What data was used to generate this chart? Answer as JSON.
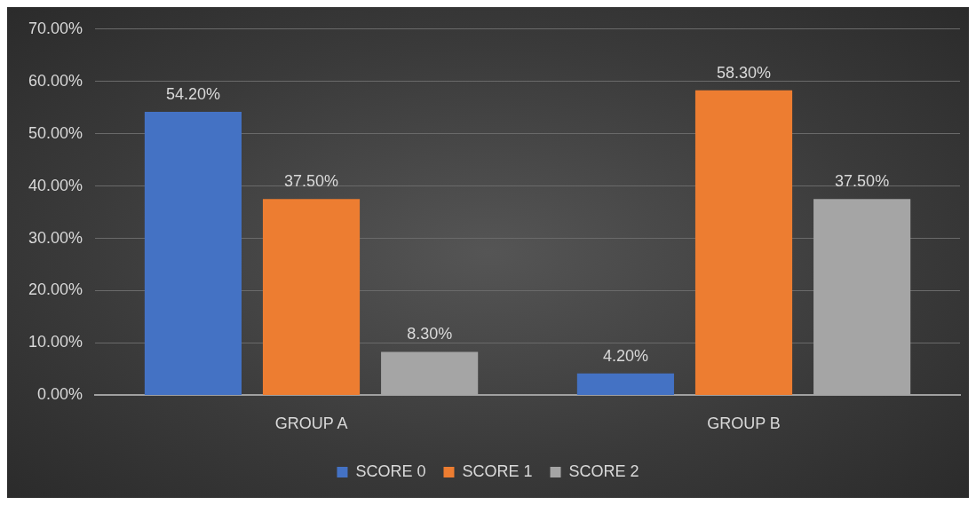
{
  "chart_data": {
    "type": "bar",
    "categories": [
      "GROUP A",
      "GROUP B"
    ],
    "series": [
      {
        "name": "SCORE 0",
        "color": "#4472c4",
        "values": [
          54.2,
          4.2
        ],
        "value_labels": [
          "54.20%",
          "4.20%"
        ]
      },
      {
        "name": "SCORE 1",
        "color": "#ed7d31",
        "values": [
          37.5,
          58.3
        ],
        "value_labels": [
          "37.50%",
          "58.30%"
        ]
      },
      {
        "name": "SCORE 2",
        "color": "#a5a5a5",
        "values": [
          8.3,
          37.5
        ],
        "value_labels": [
          "8.30%",
          "37.50%"
        ]
      }
    ],
    "ylim": [
      0,
      70
    ],
    "yticks": [
      {
        "value": 0,
        "label": "0.00%"
      },
      {
        "value": 10,
        "label": "10.00%"
      },
      {
        "value": 20,
        "label": "20.00%"
      },
      {
        "value": 30,
        "label": "30.00%"
      },
      {
        "value": 40,
        "label": "40.00%"
      },
      {
        "value": 50,
        "label": "50.00%"
      },
      {
        "value": 60,
        "label": "60.00%"
      },
      {
        "value": 70,
        "label": "70.00%"
      }
    ],
    "grid": "y",
    "legend": "bottom"
  }
}
